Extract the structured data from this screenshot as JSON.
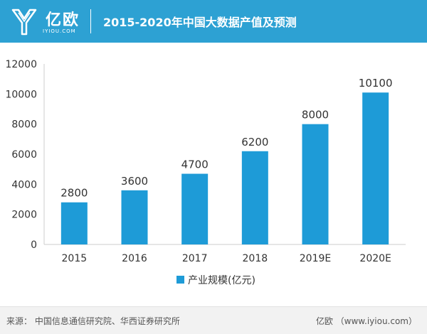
{
  "header": {
    "logo_text": "亿欧",
    "logo_sub": "IYIOU.COM",
    "title": "2015-2020年中国大数据产值及预测",
    "header_color": "#2da1d3"
  },
  "chart_data": {
    "type": "bar",
    "categories": [
      "2015",
      "2016",
      "2017",
      "2018",
      "2019E",
      "2020E"
    ],
    "series": [
      {
        "name": "产业规模(亿元)",
        "values": [
          2800,
          3600,
          4700,
          6200,
          8000,
          10100
        ],
        "color": "#1e9bd7"
      }
    ],
    "data_labels": [
      "2800",
      "3600",
      "4700",
      "6200",
      "8000",
      "10100"
    ],
    "yticks": [
      0,
      2000,
      4000,
      6000,
      8000,
      10000,
      12000
    ],
    "ylim": [
      0,
      12000
    ],
    "xlabel": "",
    "ylabel": "",
    "grid": false,
    "legend_position": "bottom"
  },
  "footer": {
    "source": "来源： 中国信息通信研究院、华西证券研究所",
    "credit": "亿欧 （www.iyiou.com）"
  }
}
